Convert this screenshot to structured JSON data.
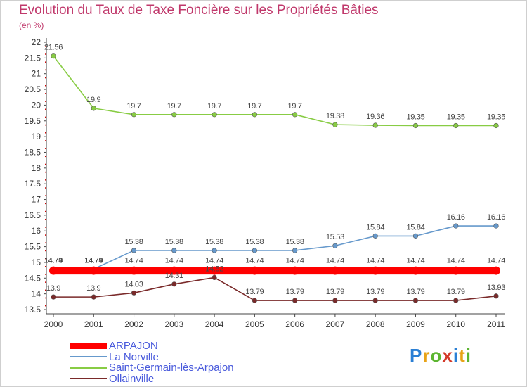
{
  "header": {
    "title": "Evolution du Taux de Taxe Foncière sur les Propriétés Bâties",
    "unit": "(en %)"
  },
  "logo": {
    "letters": [
      "P",
      "r",
      "o",
      "x",
      "i",
      "t",
      "i"
    ],
    "colors": [
      "#2a7fd4",
      "#e8a317",
      "#5cb531",
      "#d43a2a",
      "#2a7fd4",
      "#e8a317",
      "#5cb531"
    ]
  },
  "chart_data": {
    "type": "line",
    "x": [
      "2000",
      "2001",
      "2002",
      "2003",
      "2004",
      "2005",
      "2006",
      "2007",
      "2008",
      "2009",
      "2010",
      "2011"
    ],
    "ylim": [
      13.5,
      22
    ],
    "yticks": [
      "13.5",
      "14",
      "14.5",
      "15",
      "15.5",
      "16",
      "16.5",
      "17",
      "17.5",
      "18",
      "18.5",
      "19",
      "19.5",
      "20",
      "20.5",
      "21",
      "21.5",
      "22"
    ],
    "grid": false,
    "legend_position": "bottom-left",
    "series": [
      {
        "name": "ARPAJON",
        "color": "#ff0000",
        "values": [
          14.74,
          14.74,
          14.74,
          14.74,
          14.74,
          14.74,
          14.74,
          14.74,
          14.74,
          14.74,
          14.74,
          14.74
        ],
        "labels": [
          "14.74",
          "14.74",
          "14.74",
          "14.74",
          "14.74",
          "14.74",
          "14.74",
          "14.74",
          "14.74",
          "14.74",
          "14.74",
          "14.74"
        ]
      },
      {
        "name": "La Norville",
        "color": "#6699cc",
        "values": [
          14.79,
          14.79,
          15.38,
          15.38,
          15.38,
          15.38,
          15.38,
          15.53,
          15.84,
          15.84,
          16.16,
          16.16
        ],
        "labels": [
          "14.79",
          "14.79",
          "15.38",
          "15.38",
          "15.38",
          "15.38",
          "15.38",
          "15.53",
          "15.84",
          "15.84",
          "16.16",
          "16.16"
        ]
      },
      {
        "name": "Saint-Germain-lès-Arpajon",
        "color": "#88cc44",
        "values": [
          21.56,
          19.9,
          19.7,
          19.7,
          19.7,
          19.7,
          19.7,
          19.38,
          19.36,
          19.35,
          19.35,
          19.35
        ],
        "labels": [
          "21.56",
          "19.9",
          "19.7",
          "19.7",
          "19.7",
          "19.7",
          "19.7",
          "19.38",
          "19.36",
          "19.35",
          "19.35",
          "19.35"
        ]
      },
      {
        "name": "Ollainville",
        "color": "#7a2a2a",
        "values": [
          13.9,
          13.9,
          14.03,
          14.31,
          14.52,
          13.79,
          13.79,
          13.79,
          13.79,
          13.79,
          13.79,
          13.93
        ],
        "labels": [
          "13.9",
          "13.9",
          "14.03",
          "14.31",
          "14.52",
          "13.79",
          "13.79",
          "13.79",
          "13.79",
          "13.79",
          "13.79",
          "13.93"
        ]
      }
    ]
  }
}
